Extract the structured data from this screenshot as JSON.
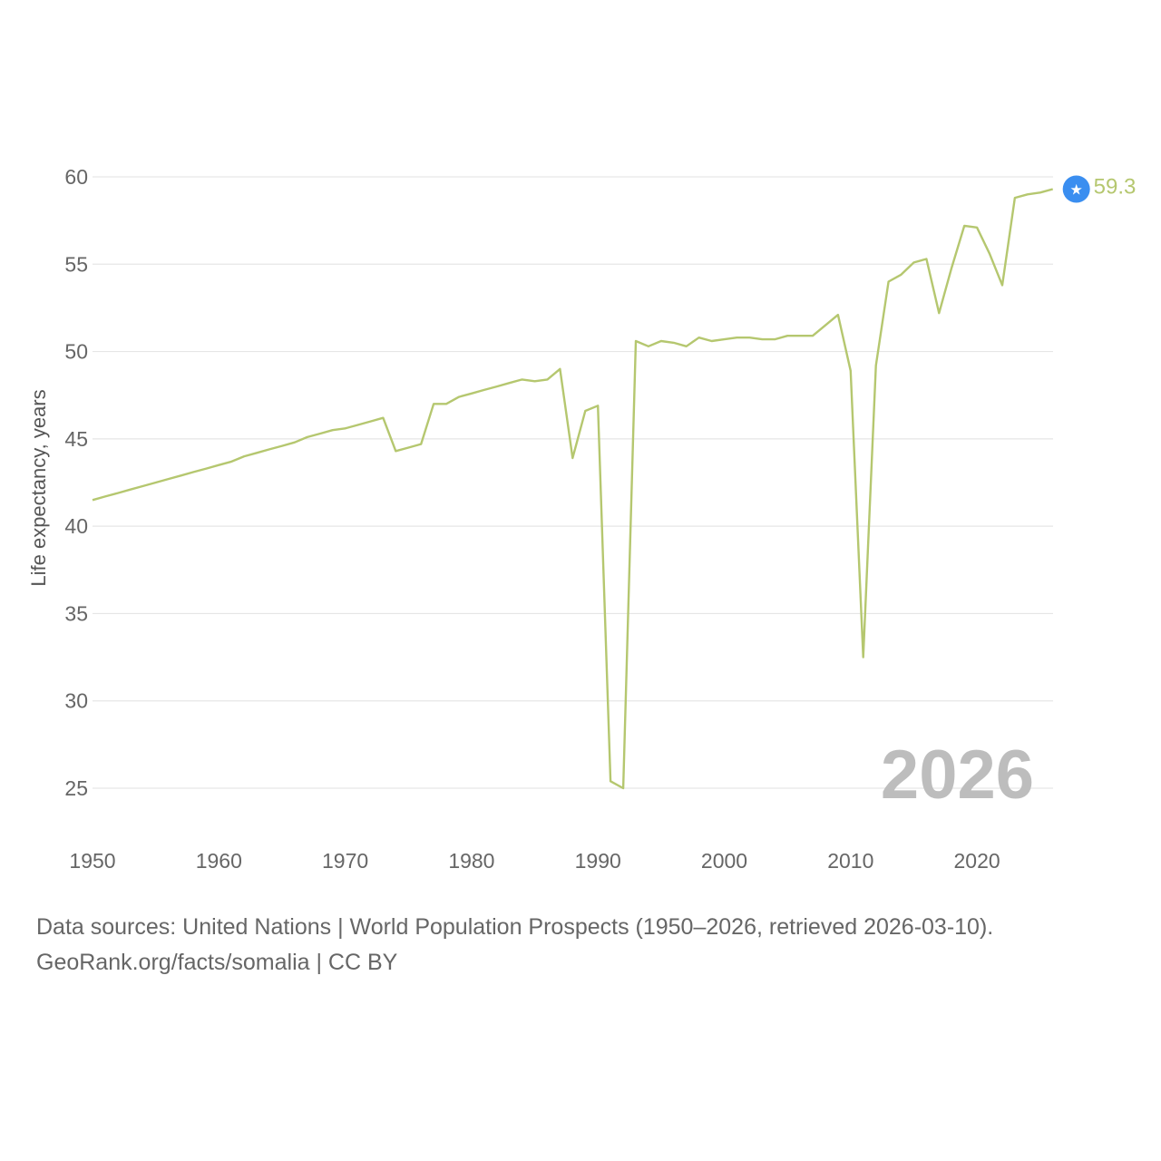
{
  "chart_data": {
    "type": "line",
    "title": "",
    "xlabel": "",
    "ylabel": "Life expectancy, years",
    "xlim": [
      1950,
      2026
    ],
    "ylim": [
      22,
      62
    ],
    "x_ticks": [
      1950,
      1960,
      1970,
      1980,
      1990,
      2000,
      2010,
      2020
    ],
    "y_ticks": [
      25,
      30,
      35,
      40,
      45,
      50,
      55,
      60
    ],
    "grid": "horizontal",
    "line_color": "#b5c76f",
    "marker_color": "#3a8ef0",
    "year_label": "2026",
    "end_value_label": "59.3",
    "series": [
      {
        "x": [
          1950,
          1951,
          1952,
          1953,
          1954,
          1955,
          1956,
          1957,
          1958,
          1959,
          1960,
          1961,
          1962,
          1963,
          1964,
          1965,
          1966,
          1967,
          1968,
          1969,
          1970,
          1971,
          1972,
          1973,
          1974,
          1975,
          1976,
          1977,
          1978,
          1979,
          1980,
          1981,
          1982,
          1983,
          1984,
          1985,
          1986,
          1987,
          1988,
          1989,
          1990,
          1991,
          1992,
          1993,
          1994,
          1995,
          1996,
          1997,
          1998,
          1999,
          2000,
          2001,
          2002,
          2003,
          2004,
          2005,
          2006,
          2007,
          2008,
          2009,
          2010,
          2011,
          2012,
          2013,
          2014,
          2015,
          2016,
          2017,
          2018,
          2019,
          2020,
          2021,
          2022,
          2023,
          2024,
          2025,
          2026
        ],
        "y": [
          41.5,
          41.7,
          41.9,
          42.1,
          42.3,
          42.5,
          42.7,
          42.9,
          43.1,
          43.3,
          43.5,
          43.7,
          44.0,
          44.2,
          44.4,
          44.6,
          44.8,
          45.1,
          45.3,
          45.5,
          45.6,
          45.8,
          46.0,
          46.2,
          44.3,
          44.5,
          44.7,
          47.0,
          47.0,
          47.4,
          47.6,
          47.8,
          48.0,
          48.2,
          48.4,
          48.3,
          48.4,
          49.0,
          43.9,
          46.6,
          46.9,
          25.4,
          25.0,
          50.6,
          50.3,
          50.6,
          50.5,
          50.3,
          50.8,
          50.6,
          50.7,
          50.8,
          50.8,
          50.7,
          50.7,
          50.9,
          50.9,
          50.9,
          51.5,
          52.1,
          48.9,
          32.5,
          49.2,
          54.0,
          54.4,
          55.1,
          55.3,
          52.2,
          54.8,
          57.2,
          57.1,
          55.6,
          53.8,
          58.8,
          59.0,
          59.1,
          59.3
        ]
      }
    ]
  },
  "footer": {
    "line1": "Data sources: United Nations | World Population Prospects (1950–2026, retrieved 2026-03-10).",
    "line2": "GeoRank.org/facts/somalia | CC BY"
  }
}
